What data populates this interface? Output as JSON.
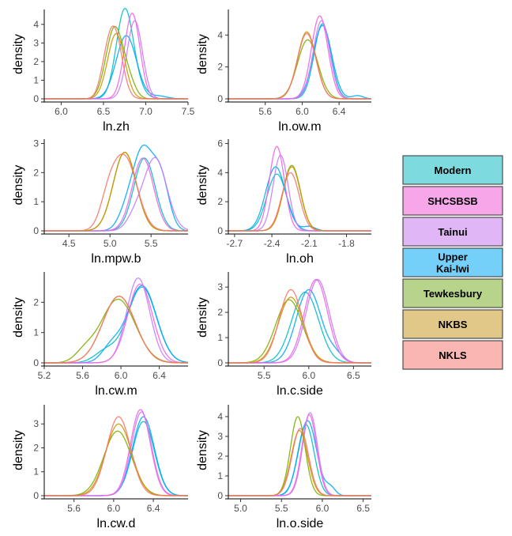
{
  "legend": {
    "entries": [
      {
        "lines": [
          "Modern"
        ],
        "color": "#7ddbe0"
      },
      {
        "lines": [
          "SHCSBSB"
        ],
        "color": "#f8a6ea"
      },
      {
        "lines": [
          "Tainui"
        ],
        "color": "#e1b6f6"
      },
      {
        "lines": [
          "Upper",
          "Kai-Iwi"
        ],
        "color": "#74d0f9"
      },
      {
        "lines": [
          "Tewkesbury"
        ],
        "color": "#b8d48a"
      },
      {
        "lines": [
          "NKBS"
        ],
        "color": "#e2c888"
      },
      {
        "lines": [
          "NKLS"
        ],
        "color": "#f9b6b2"
      }
    ]
  },
  "series_colors": {
    "Modern": "#00BFC4",
    "SHCSBSB": "#F564E3",
    "Tainui": "#C77CFF",
    "Upper Kai-Iwi": "#00A9FF",
    "Tewkesbury": "#7CAE00",
    "NKBS": "#CD9600",
    "NKLS": "#F8766D"
  },
  "chart_data": [
    {
      "type": "density",
      "xlabel": "ln.zh",
      "ylabel": "density",
      "xlim": [
        5.8,
        7.5
      ],
      "ylim": [
        0,
        4.8
      ],
      "xticks": [
        "6.0",
        "6.5",
        "7.0",
        "7.5"
      ],
      "yticks": [
        "0",
        "1",
        "2",
        "3",
        "4"
      ],
      "series": [
        {
          "group": "NKLS",
          "peaks": [
            [
              6.63,
              0.09,
              3.6
            ],
            [
              6.52,
              0.07,
              0.9
            ]
          ]
        },
        {
          "group": "NKBS",
          "peaks": [
            [
              6.65,
              0.1,
              3.5
            ]
          ]
        },
        {
          "group": "Tewkesbury",
          "peaks": [
            [
              6.63,
              0.1,
              3.8
            ],
            [
              6.8,
              0.08,
              0.8
            ]
          ]
        },
        {
          "group": "Modern",
          "peaks": [
            [
              6.75,
              0.1,
              4.5
            ],
            [
              6.85,
              0.12,
              0.5
            ]
          ]
        },
        {
          "group": "Upper Kai-Iwi",
          "peaks": [
            [
              6.77,
              0.12,
              3.4
            ],
            [
              7.15,
              0.1,
              0.15
            ]
          ]
        },
        {
          "group": "Tainui",
          "peaks": [
            [
              6.87,
              0.09,
              4.2
            ]
          ]
        },
        {
          "group": "SHCSBSB",
          "peaks": [
            [
              6.84,
              0.09,
              4.6
            ]
          ]
        }
      ]
    },
    {
      "type": "density",
      "xlabel": "ln.ow.m",
      "ylabel": "density",
      "xlim": [
        5.2,
        6.75
      ],
      "ylim": [
        0,
        5.6
      ],
      "xticks": [
        "5.6",
        "6.0",
        "6.4"
      ],
      "yticks": [
        "0",
        "2",
        "4"
      ],
      "series": [
        {
          "group": "NKLS",
          "peaks": [
            [
              6.05,
              0.1,
              4.1
            ]
          ]
        },
        {
          "group": "NKBS",
          "peaks": [
            [
              6.05,
              0.1,
              4.2
            ]
          ]
        },
        {
          "group": "Tewkesbury",
          "peaks": [
            [
              6.06,
              0.11,
              3.7
            ]
          ]
        },
        {
          "group": "Modern",
          "peaks": [
            [
              6.22,
              0.09,
              4.7
            ]
          ]
        },
        {
          "group": "Upper Kai-Iwi",
          "peaks": [
            [
              6.22,
              0.1,
              4.6
            ],
            [
              6.6,
              0.06,
              0.2
            ]
          ]
        },
        {
          "group": "Tainui",
          "peaks": [
            [
              6.21,
              0.09,
              4.9
            ]
          ]
        },
        {
          "group": "SHCSBSB",
          "peaks": [
            [
              6.19,
              0.09,
              5.2
            ]
          ]
        }
      ]
    },
    {
      "type": "density",
      "xlabel": "ln.mpw.b",
      "ylabel": "density",
      "xlim": [
        4.2,
        5.95
      ],
      "ylim": [
        0,
        3.15
      ],
      "xticks": [
        "4.5",
        "5.0",
        "5.5"
      ],
      "yticks": [
        "0",
        "1",
        "2",
        "3"
      ],
      "series": [
        {
          "group": "NKLS",
          "peaks": [
            [
              5.18,
              0.15,
              2.5
            ],
            [
              4.98,
              0.1,
              0.8
            ]
          ]
        },
        {
          "group": "NKBS",
          "peaks": [
            [
              5.18,
              0.14,
              2.7
            ]
          ]
        },
        {
          "group": "Tewkesbury",
          "peaks": [
            [
              5.18,
              0.14,
              2.7
            ]
          ]
        },
        {
          "group": "Modern",
          "peaks": [
            [
              5.42,
              0.13,
              2.5
            ]
          ]
        },
        {
          "group": "Upper Kai-Iwi",
          "peaks": [
            [
              5.4,
              0.12,
              2.7
            ],
            [
              5.62,
              0.1,
              1.7
            ],
            [
              5.2,
              0.1,
              0.6
            ]
          ]
        },
        {
          "group": "Tainui",
          "peaks": [
            [
              5.55,
              0.14,
              2.5
            ],
            [
              5.3,
              0.1,
              0.4
            ]
          ]
        },
        {
          "group": "SHCSBSB",
          "peaks": [
            [
              5.4,
              0.13,
              2.5
            ]
          ]
        }
      ]
    },
    {
      "type": "density",
      "xlabel": "ln.oh",
      "ylabel": "density",
      "xlim": [
        -2.75,
        -1.6
      ],
      "ylim": [
        0,
        6.3
      ],
      "xticks": [
        "-2.7",
        "-2.4",
        "-2.1",
        "-1.8"
      ],
      "yticks": [
        "0",
        "2",
        "4",
        "6"
      ],
      "series": [
        {
          "group": "NKLS",
          "peaks": [
            [
              -2.25,
              0.07,
              4.0
            ]
          ]
        },
        {
          "group": "NKBS",
          "peaks": [
            [
              -2.24,
              0.07,
              4.4
            ]
          ]
        },
        {
          "group": "Tewkesbury",
          "peaks": [
            [
              -2.24,
              0.07,
              4.5
            ]
          ]
        },
        {
          "group": "Modern",
          "peaks": [
            [
              -2.36,
              0.08,
              3.9
            ]
          ]
        },
        {
          "group": "Upper Kai-Iwi",
          "peaks": [
            [
              -2.37,
              0.08,
              4.4
            ],
            [
              -2.1,
              0.05,
              0.3
            ]
          ]
        },
        {
          "group": "Tainui",
          "peaks": [
            [
              -2.33,
              0.06,
              5.2
            ]
          ]
        },
        {
          "group": "SHCSBSB",
          "peaks": [
            [
              -2.36,
              0.06,
              5.8
            ]
          ]
        }
      ]
    },
    {
      "type": "density",
      "xlabel": "ln.cw.m",
      "ylabel": "density",
      "xlim": [
        5.2,
        6.7
      ],
      "ylim": [
        0,
        3.0
      ],
      "xticks": [
        "5.2",
        "5.6",
        "6.0",
        "6.4"
      ],
      "yticks": [
        "0",
        "1",
        "2"
      ],
      "series": [
        {
          "group": "NKLS",
          "peaks": [
            [
              5.98,
              0.17,
              2.2
            ]
          ]
        },
        {
          "group": "NKBS",
          "peaks": [
            [
              5.98,
              0.17,
              2.2
            ]
          ]
        },
        {
          "group": "Tewkesbury",
          "peaks": [
            [
              5.97,
              0.18,
              2.1
            ],
            [
              5.62,
              0.1,
              0.3
            ]
          ]
        },
        {
          "group": "Modern",
          "peaks": [
            [
              6.22,
              0.15,
              2.5
            ],
            [
              5.85,
              0.12,
              0.4
            ]
          ]
        },
        {
          "group": "Upper Kai-Iwi",
          "peaks": [
            [
              6.22,
              0.15,
              2.55
            ],
            [
              5.9,
              0.1,
              0.5
            ]
          ]
        },
        {
          "group": "Tainui",
          "peaks": [
            [
              6.18,
              0.12,
              2.8
            ]
          ]
        },
        {
          "group": "SHCSBSB",
          "peaks": [
            [
              6.2,
              0.13,
              2.6
            ]
          ]
        }
      ]
    },
    {
      "type": "density",
      "xlabel": "ln.c.side",
      "ylabel": "density",
      "xlim": [
        5.1,
        6.7
      ],
      "ylim": [
        0,
        3.6
      ],
      "xticks": [
        "5.5",
        "6.0",
        "6.5"
      ],
      "yticks": [
        "0",
        "1",
        "2",
        "3"
      ],
      "series": [
        {
          "group": "NKLS",
          "peaks": [
            [
              5.8,
              0.13,
              2.9
            ]
          ]
        },
        {
          "group": "NKBS",
          "peaks": [
            [
              5.8,
              0.14,
              2.6
            ]
          ]
        },
        {
          "group": "Tewkesbury",
          "peaks": [
            [
              5.78,
              0.15,
              2.5
            ]
          ]
        },
        {
          "group": "Modern",
          "peaks": [
            [
              5.96,
              0.15,
              2.8
            ]
          ]
        },
        {
          "group": "Upper Kai-Iwi",
          "peaks": [
            [
              6.0,
              0.14,
              2.9
            ],
            [
              6.3,
              0.08,
              0.3
            ]
          ]
        },
        {
          "group": "Tainui",
          "peaks": [
            [
              6.1,
              0.13,
              3.3
            ]
          ]
        },
        {
          "group": "SHCSBSB",
          "peaks": [
            [
              6.08,
              0.13,
              3.3
            ]
          ]
        }
      ]
    },
    {
      "type": "density",
      "xlabel": "ln.cw.d",
      "ylabel": "density",
      "xlim": [
        5.3,
        6.75
      ],
      "ylim": [
        0,
        3.8
      ],
      "xticks": [
        "5.6",
        "6.0",
        "6.4"
      ],
      "yticks": [
        "0",
        "1",
        "2",
        "3"
      ],
      "series": [
        {
          "group": "NKLS",
          "peaks": [
            [
              6.05,
              0.12,
              3.3
            ]
          ]
        },
        {
          "group": "NKBS",
          "peaks": [
            [
              6.05,
              0.13,
              3.0
            ]
          ]
        },
        {
          "group": "Tewkesbury",
          "peaks": [
            [
              6.04,
              0.14,
              2.7
            ]
          ]
        },
        {
          "group": "Modern",
          "peaks": [
            [
              6.3,
              0.11,
              3.1
            ]
          ]
        },
        {
          "group": "Upper Kai-Iwi",
          "peaks": [
            [
              6.3,
              0.11,
              3.3
            ]
          ]
        },
        {
          "group": "Tainui",
          "peaks": [
            [
              6.28,
              0.1,
              3.5
            ]
          ]
        },
        {
          "group": "SHCSBSB",
          "peaks": [
            [
              6.27,
              0.1,
              3.6
            ]
          ]
        }
      ]
    },
    {
      "type": "density",
      "xlabel": "ln.o.side",
      "ylabel": "density",
      "xlim": [
        4.85,
        6.6
      ],
      "ylim": [
        0,
        4.6
      ],
      "xticks": [
        "5.0",
        "5.5",
        "6.0",
        "6.5"
      ],
      "yticks": [
        "0",
        "1",
        "2",
        "3",
        "4"
      ],
      "series": [
        {
          "group": "NKLS",
          "peaks": [
            [
              5.73,
              0.1,
              3.4
            ]
          ]
        },
        {
          "group": "NKBS",
          "peaks": [
            [
              5.72,
              0.1,
              3.3
            ]
          ]
        },
        {
          "group": "Tewkesbury",
          "peaks": [
            [
              5.7,
              0.09,
              4.0
            ]
          ]
        },
        {
          "group": "Modern",
          "peaks": [
            [
              5.8,
              0.1,
              3.6
            ]
          ]
        },
        {
          "group": "Upper Kai-Iwi",
          "peaks": [
            [
              5.82,
              0.11,
              3.8
            ],
            [
              6.1,
              0.06,
              0.4
            ]
          ]
        },
        {
          "group": "Tainui",
          "peaks": [
            [
              5.85,
              0.09,
              4.2
            ]
          ]
        },
        {
          "group": "SHCSBSB",
          "peaks": [
            [
              5.84,
              0.09,
              4.1
            ]
          ]
        }
      ]
    }
  ]
}
